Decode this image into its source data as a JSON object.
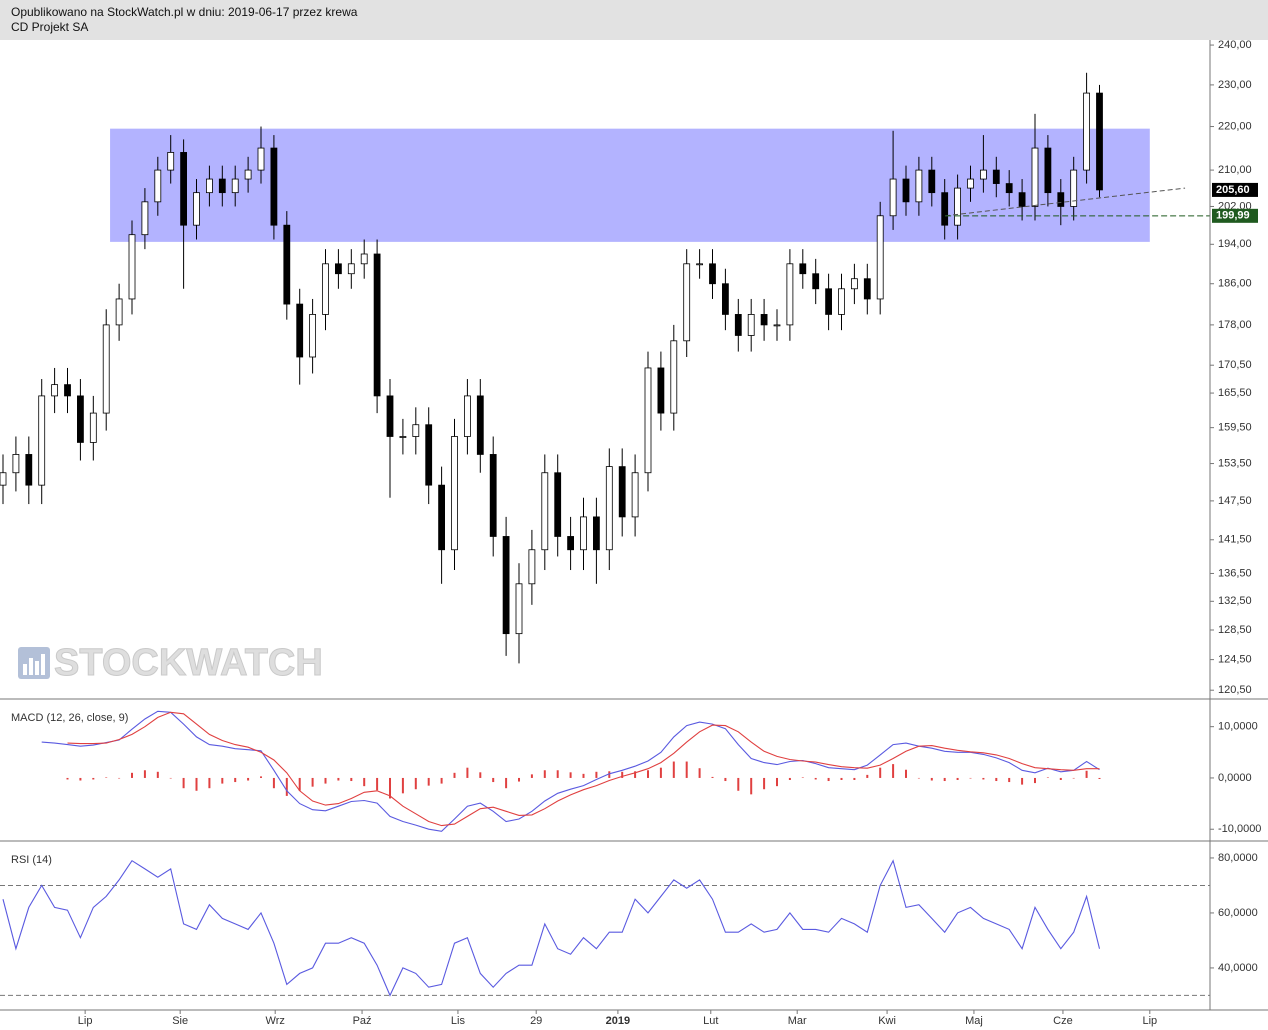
{
  "header": {
    "line1": "Opublikowano na StockWatch.pl w dniu: 2019-06-17 przez krewa",
    "line2": "CD Projekt SA"
  },
  "watermark": "STOCKWATCH",
  "chart_data": [
    {
      "type": "candlestick",
      "x": [
        0,
        3,
        6,
        9,
        12,
        15,
        18,
        21,
        24,
        27,
        30,
        33,
        36,
        39,
        42,
        45,
        48,
        51,
        54,
        57,
        60,
        63,
        66,
        69,
        72,
        75,
        78,
        81,
        84,
        87,
        90,
        93,
        96,
        99,
        102,
        105,
        108,
        111,
        114,
        117,
        120,
        123,
        126,
        129,
        132,
        135,
        138,
        141,
        144,
        147,
        150,
        153,
        156,
        159,
        162,
        165,
        168,
        171,
        174,
        177,
        180,
        183,
        186,
        189,
        192,
        195,
        198,
        201,
        204,
        207,
        210,
        213,
        216,
        219,
        222,
        225,
        228,
        231,
        234,
        237,
        240,
        243,
        246,
        249,
        252,
        255
      ],
      "open": [
        150,
        152,
        155,
        150,
        165,
        167,
        165,
        157,
        162,
        178,
        183,
        196,
        203,
        210,
        214,
        198,
        205,
        208,
        205,
        208,
        210,
        215,
        198,
        182,
        172,
        180,
        190,
        188,
        190,
        192,
        165,
        158,
        158,
        160,
        150,
        140,
        158,
        165,
        155,
        142,
        128,
        135,
        140,
        152,
        142,
        140,
        145,
        140,
        153,
        145,
        152,
        170,
        162,
        175,
        190,
        190,
        186,
        180,
        176,
        180,
        178,
        178,
        190,
        188,
        185,
        180,
        185,
        187,
        183,
        200,
        208,
        203,
        210,
        205,
        198,
        206,
        208,
        210,
        207,
        205,
        202,
        215,
        205,
        202,
        210,
        228
      ],
      "high": [
        155,
        158,
        158,
        168,
        170,
        170,
        168,
        165,
        181,
        186,
        199,
        206,
        213,
        218,
        217,
        208,
        211,
        211,
        211,
        213,
        220,
        218,
        201,
        185,
        183,
        193,
        193,
        193,
        195,
        195,
        168,
        161,
        163,
        163,
        153,
        161,
        168,
        168,
        158,
        145,
        138,
        143,
        155,
        155,
        145,
        148,
        148,
        156,
        156,
        155,
        173,
        173,
        178,
        193,
        193,
        193,
        189,
        183,
        183,
        183,
        181,
        193,
        193,
        191,
        188,
        188,
        190,
        190,
        203,
        219,
        211,
        213,
        213,
        208,
        209,
        211,
        218,
        213,
        210,
        208,
        223,
        218,
        208,
        213,
        233,
        230
      ],
      "low": [
        147,
        149,
        147,
        147,
        162,
        162,
        154,
        154,
        159,
        175,
        180,
        193,
        200,
        207,
        185,
        195,
        202,
        202,
        202,
        205,
        207,
        195,
        179,
        167,
        169,
        177,
        185,
        185,
        187,
        162,
        148,
        155,
        155,
        147,
        135,
        137,
        155,
        152,
        139,
        125,
        124,
        132,
        137,
        139,
        137,
        137,
        135,
        137,
        142,
        142,
        149,
        159,
        159,
        172,
        187,
        183,
        177,
        173,
        173,
        175,
        175,
        175,
        185,
        182,
        177,
        177,
        182,
        180,
        180,
        197,
        200,
        200,
        202,
        195,
        195,
        203,
        205,
        204,
        202,
        199,
        199,
        202,
        198,
        199,
        207,
        204
      ],
      "close": [
        152,
        155,
        150,
        165,
        167,
        165,
        157,
        162,
        178,
        183,
        196,
        203,
        210,
        214,
        198,
        205,
        208,
        205,
        208,
        210,
        215,
        198,
        182,
        172,
        180,
        190,
        188,
        190,
        192,
        165,
        158,
        158,
        160,
        150,
        140,
        158,
        165,
        155,
        142,
        128,
        135,
        140,
        152,
        142,
        140,
        145,
        140,
        153,
        145,
        152,
        170,
        162,
        175,
        190,
        190,
        186,
        180,
        176,
        180,
        178,
        178,
        190,
        188,
        185,
        180,
        185,
        187,
        183,
        200,
        208,
        203,
        210,
        205,
        198,
        206,
        208,
        210,
        207,
        205,
        202,
        215,
        205,
        202,
        210,
        228,
        205.6
      ],
      "log_scale": true,
      "xlim": [
        -0.7,
        280.7
      ],
      "xticks": [
        {
          "value": 19.1,
          "label": "Lip"
        },
        {
          "value": 41.2,
          "label": "Sie"
        },
        {
          "value": 63.3,
          "label": "Wrz"
        },
        {
          "value": 83.5,
          "label": "Paź"
        },
        {
          "value": 105.8,
          "label": "Lis"
        },
        {
          "value": 124.0,
          "label": "29"
        },
        {
          "value": 143.0,
          "label": "2019",
          "bold": true
        },
        {
          "value": 164.6,
          "label": "Lut"
        },
        {
          "value": 184.7,
          "label": "Mar"
        },
        {
          "value": 205.6,
          "label": "Kwi"
        },
        {
          "value": 225.8,
          "label": "Maj"
        },
        {
          "value": 246.5,
          "label": "Cze"
        },
        {
          "value": 266.7,
          "label": "Lip"
        }
      ],
      "ylim": [
        119.5,
        241.3
      ],
      "yticks": [
        {
          "value": 240,
          "label": "240,00"
        },
        {
          "value": 230,
          "label": "230,00"
        },
        {
          "value": 220,
          "label": "220,00"
        },
        {
          "value": 210,
          "label": "210,00"
        },
        {
          "value": 202,
          "label": "202,00"
        },
        {
          "value": 194,
          "label": "194,00"
        },
        {
          "value": 186,
          "label": "186,00"
        },
        {
          "value": 178,
          "label": "178,00"
        },
        {
          "value": 170.5,
          "label": "170,50"
        },
        {
          "value": 165.5,
          "label": "165,50"
        },
        {
          "value": 159.5,
          "label": "159,50"
        },
        {
          "value": 153.5,
          "label": "153,50"
        },
        {
          "value": 147.5,
          "label": "147,50"
        },
        {
          "value": 141.5,
          "label": "141,50"
        },
        {
          "value": 136.5,
          "label": "136,50"
        },
        {
          "value": 132.5,
          "label": "132,50"
        },
        {
          "value": 128.5,
          "label": "128,50"
        },
        {
          "value": 124.5,
          "label": "124,50"
        },
        {
          "value": 120.5,
          "label": "120,50"
        }
      ],
      "zone": {
        "x": [
          24.9,
          266.7
        ],
        "y": [
          194.5,
          219.5
        ],
        "color": "#b3b3ff"
      },
      "trendline": {
        "x": [
          219.1,
          274.9
        ],
        "y": [
          199.99,
          206.0
        ]
      },
      "support": {
        "value": 199.99,
        "label": "199,99",
        "from": 219.1,
        "color": "#1f5a1f"
      },
      "last_price": {
        "value": 205.6,
        "label": "205,60"
      }
    },
    {
      "type": "macd",
      "title": "MACD (12, 26, close, 9)",
      "ylim": [
        -12.1,
        15.2
      ],
      "yticks": [
        {
          "value": 10,
          "label": "10,0000"
        },
        {
          "value": 0,
          "label": "0,0000"
        },
        {
          "value": -10,
          "label": "-10,0000"
        }
      ],
      "series": [
        {
          "color": "#5a5ae0",
          "values": [
            null,
            null,
            null,
            7.0,
            6.8,
            6.5,
            6.2,
            6.4,
            6.9,
            7.4,
            9.5,
            11.5,
            13.0,
            12.8,
            10.5,
            8.0,
            6.5,
            6.2,
            5.7,
            5.5,
            5.3,
            1.5,
            -2.5,
            -5.0,
            -6.2,
            -6.4,
            -5.5,
            -4.6,
            -4.4,
            -4.9,
            -7.5,
            -8.5,
            -9.2,
            -10.0,
            -10.4,
            -8.0,
            -5.5,
            -4.9,
            -6.5,
            -8.5,
            -8.0,
            -6.5,
            -4.5,
            -3.0,
            -2.2,
            -1.5,
            -0.3,
            0.8,
            1.5,
            2.3,
            3.3,
            5.0,
            8.0,
            10.2,
            10.9,
            10.5,
            9.6,
            6.5,
            3.8,
            3.0,
            2.6,
            3.2,
            3.4,
            2.8,
            2.0,
            1.8,
            1.6,
            2.5,
            4.5,
            6.5,
            6.8,
            6.2,
            5.8,
            5.2,
            5.0,
            5.0,
            4.6,
            3.9,
            3.0,
            1.5,
            1.0,
            1.9,
            1.2,
            1.5,
            3.2,
            1.6
          ]
        },
        {
          "color": "#e04040",
          "values": [
            null,
            null,
            null,
            null,
            null,
            6.8,
            6.7,
            6.7,
            6.8,
            7.5,
            8.5,
            10.0,
            11.8,
            12.8,
            12.5,
            10.5,
            8.5,
            7.3,
            6.5,
            6.0,
            5.0,
            3.5,
            1.0,
            -2.5,
            -4.5,
            -5.3,
            -5.0,
            -4.0,
            -2.8,
            -2.5,
            -3.5,
            -5.5,
            -7.0,
            -8.5,
            -9.3,
            -9.0,
            -7.5,
            -6.0,
            -5.7,
            -6.5,
            -7.3,
            -7.2,
            -6.0,
            -4.5,
            -3.3,
            -2.3,
            -1.5,
            -0.5,
            0.3,
            1.0,
            1.8,
            3.0,
            4.8,
            7.0,
            9.0,
            10.3,
            10.2,
            9.0,
            7.0,
            5.2,
            4.2,
            3.6,
            3.3,
            3.1,
            2.6,
            2.2,
            2.0,
            1.9,
            2.5,
            3.8,
            5.2,
            6.2,
            6.3,
            5.8,
            5.4,
            5.1,
            4.9,
            4.5,
            3.8,
            2.8,
            2.0,
            1.8,
            1.6,
            1.5,
            1.8,
            1.8
          ]
        }
      ],
      "histogram": {
        "color": "#e04040",
        "values": [
          null,
          null,
          null,
          null,
          null,
          -0.3,
          -0.5,
          -0.3,
          0.1,
          -0.1,
          1.0,
          1.5,
          1.2,
          0.0,
          -2.0,
          -2.5,
          -2.0,
          -1.1,
          -0.8,
          -0.5,
          0.3,
          -2.0,
          -3.5,
          -2.5,
          -1.7,
          -1.1,
          -0.5,
          -0.6,
          -1.6,
          -2.4,
          -4.0,
          -3.0,
          -2.2,
          -1.5,
          -1.1,
          1.0,
          2.0,
          1.1,
          -0.8,
          -2.0,
          -0.7,
          0.7,
          1.5,
          1.5,
          1.1,
          0.8,
          1.2,
          1.3,
          1.2,
          1.3,
          1.5,
          2.0,
          3.2,
          3.2,
          1.9,
          0.2,
          -0.6,
          -2.5,
          -3.2,
          -2.2,
          -1.6,
          -0.4,
          0.1,
          -0.3,
          -0.6,
          -0.4,
          -0.4,
          0.6,
          2.0,
          2.7,
          1.6,
          0.0,
          -0.5,
          -0.6,
          -0.4,
          -0.1,
          -0.3,
          -0.6,
          -0.8,
          -1.3,
          -1.0,
          0.1,
          -0.4,
          0.0,
          1.4,
          -0.2
        ]
      }
    },
    {
      "type": "line",
      "title": "RSI (14)",
      "ylim": [
        24.7,
        85.8
      ],
      "yticks": [
        {
          "value": 80,
          "label": "80,0000"
        },
        {
          "value": 60,
          "label": "60,0000"
        },
        {
          "value": 40,
          "label": "40,0000"
        }
      ],
      "levels": [
        70,
        30
      ],
      "color": "#5a5ae0",
      "values": [
        65,
        47,
        62,
        70,
        62,
        61,
        51,
        62,
        66,
        72,
        79,
        76,
        73,
        76,
        56,
        54,
        63,
        58,
        56,
        54,
        60,
        49,
        34,
        38,
        40,
        49,
        49,
        51,
        49,
        41,
        30,
        40,
        38,
        33,
        34,
        49,
        51,
        38,
        33,
        38,
        41,
        41,
        56,
        47,
        45,
        51,
        47,
        53,
        53,
        65,
        60,
        66,
        72,
        69,
        72,
        65,
        53,
        53,
        56,
        53,
        54,
        60,
        54,
        54,
        53,
        58,
        56,
        53,
        70,
        79,
        62,
        63,
        58,
        53,
        60,
        62,
        58,
        56,
        54,
        47,
        62,
        54,
        47,
        53,
        66,
        47
      ]
    }
  ]
}
